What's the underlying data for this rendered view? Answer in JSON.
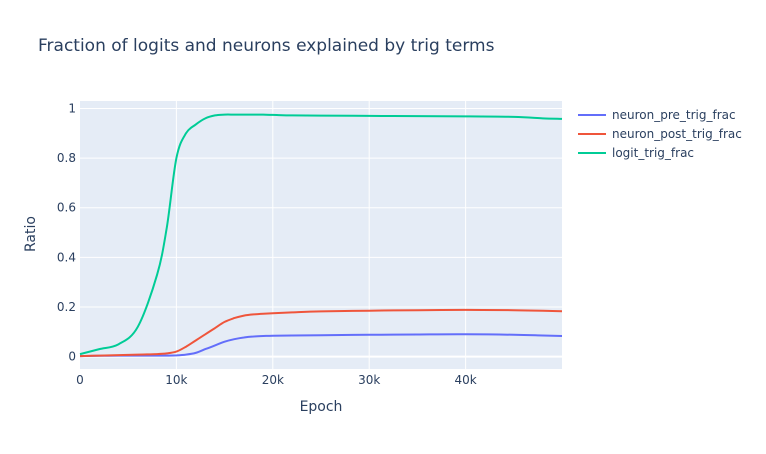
{
  "chart_data": {
    "type": "line",
    "title": "Fraction of logits and neurons explained by trig terms",
    "xlabel": "Epoch",
    "ylabel": "Ratio",
    "xlim": [
      0,
      50000
    ],
    "ylim": [
      -0.05,
      1.03
    ],
    "x_ticks": [
      0,
      10000,
      20000,
      30000,
      40000
    ],
    "x_tick_labels": [
      "0",
      "10k",
      "20k",
      "30k",
      "40k"
    ],
    "y_ticks": [
      0,
      0.2,
      0.4,
      0.6,
      0.8,
      1
    ],
    "y_tick_labels": [
      "0",
      "0.2",
      "0.4",
      "0.6",
      "0.8",
      "1"
    ],
    "grid": true,
    "legend_position": "right",
    "background_color": "#E5ECF6",
    "x": [
      0,
      2000,
      4000,
      6000,
      8000,
      9000,
      10000,
      11000,
      12000,
      13000,
      14000,
      15000,
      16000,
      17000,
      18000,
      19000,
      20000,
      22000,
      25000,
      30000,
      35000,
      40000,
      45000,
      48000,
      50000
    ],
    "series": [
      {
        "name": "neuron_pre_trig_frac",
        "color": "#636EFA",
        "values": [
          0.002,
          0.003,
          0.004,
          0.004,
          0.004,
          0.004,
          0.005,
          0.008,
          0.015,
          0.03,
          0.045,
          0.06,
          0.07,
          0.077,
          0.081,
          0.083,
          0.084,
          0.085,
          0.086,
          0.088,
          0.089,
          0.09,
          0.088,
          0.085,
          0.083
        ]
      },
      {
        "name": "neuron_post_trig_frac",
        "color": "#EF553B",
        "values": [
          0.002,
          0.004,
          0.006,
          0.008,
          0.01,
          0.013,
          0.02,
          0.04,
          0.065,
          0.09,
          0.115,
          0.14,
          0.155,
          0.165,
          0.17,
          0.173,
          0.175,
          0.178,
          0.182,
          0.185,
          0.187,
          0.188,
          0.187,
          0.185,
          0.183
        ]
      },
      {
        "name": "logit_trig_frac",
        "color": "#00CC96",
        "values": [
          0.01,
          0.03,
          0.05,
          0.12,
          0.33,
          0.52,
          0.8,
          0.9,
          0.935,
          0.96,
          0.972,
          0.975,
          0.975,
          0.975,
          0.975,
          0.975,
          0.974,
          0.972,
          0.971,
          0.97,
          0.969,
          0.968,
          0.966,
          0.96,
          0.958
        ]
      }
    ]
  }
}
